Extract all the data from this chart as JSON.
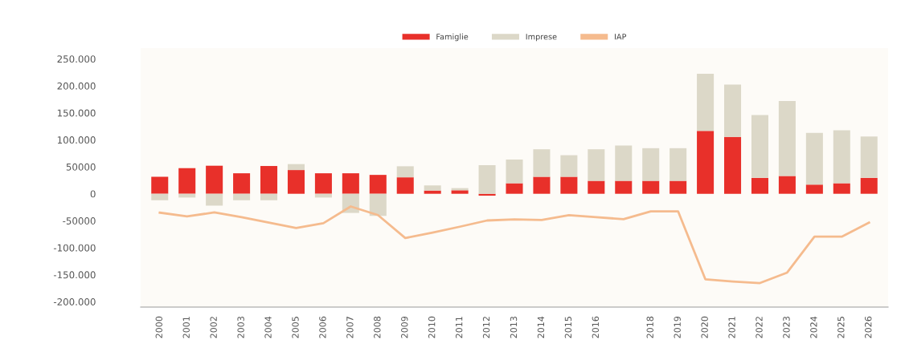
{
  "chart_data": {
    "type": "bar",
    "stacked": true,
    "categories": [
      "2000",
      "2001",
      "2002",
      "2003",
      "2004",
      "2005",
      "2006",
      "2007",
      "2008",
      "2009",
      "2010",
      "2011",
      "2012",
      "2013",
      "2014",
      "2015",
      "2016",
      null,
      "2018",
      "2019",
      "2020",
      "2021",
      "2022",
      "2023",
      "2024",
      "2025",
      "2026"
    ],
    "series": [
      {
        "name": "Famiglie",
        "color": "#e8302a",
        "values": [
          31500,
          47500,
          52000,
          38000,
          51500,
          44000,
          38000,
          38000,
          35000,
          30500,
          6000,
          6500,
          -3500,
          19500,
          31500,
          31500,
          24000,
          24000,
          24000,
          24000,
          116500,
          105500,
          29500,
          33000,
          17000,
          19500,
          29500
        ]
      },
      {
        "name": "Imprese",
        "color": "#dcd8c8",
        "values": [
          -12000,
          -7000,
          -22000,
          -12000,
          -12000,
          11000,
          -7000,
          -35500,
          -41000,
          20500,
          9500,
          4000,
          53000,
          44000,
          51000,
          40000,
          58500,
          65500,
          60500,
          60500,
          106000,
          97000,
          116500,
          139000,
          96000,
          98000,
          76500
        ]
      },
      {
        "name": "IAP",
        "type": "line",
        "color": "#f5bb8e",
        "values": [
          -35000,
          -42000,
          -34500,
          -43500,
          -53500,
          -63500,
          -54500,
          -23500,
          -39500,
          -82000,
          -72000,
          -61000,
          -49500,
          -47500,
          -48500,
          -39500,
          -43500,
          -47000,
          -32500,
          -32500,
          -158500,
          -162500,
          -165500,
          -146000,
          -79500,
          -79500,
          -53500
        ]
      }
    ],
    "ylim": [
      -210000,
      270000
    ],
    "yticks": [
      {
        "value": 250000,
        "label": "250.000"
      },
      {
        "value": 200000,
        "label": "200.000"
      },
      {
        "value": 150000,
        "label": "150.000"
      },
      {
        "value": 100000,
        "label": "100.000"
      },
      {
        "value": 50000,
        "label": "50000"
      },
      0,
      {
        "value": -50000,
        "label": "-50000"
      },
      {
        "value": -100000,
        "label": "-100.000"
      },
      {
        "value": -150000,
        "label": "-150.000"
      },
      {
        "value": -200000,
        "label": "-200.000"
      }
    ],
    "grid": false,
    "legend": "top"
  }
}
